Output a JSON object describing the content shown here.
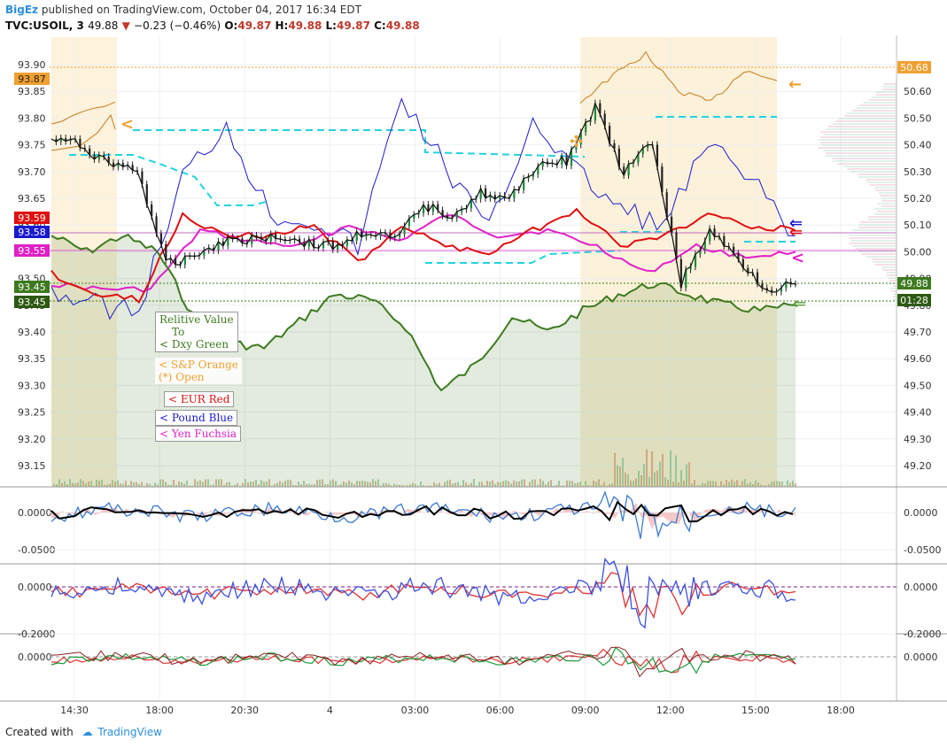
{
  "header": {
    "user": "BigEz",
    "published": "published on TradingView.com, October 04, 2017 16:34 EDT",
    "symbol": "TVC:USOIL, 3",
    "last": "49.88",
    "change": "−0.23 (−0.46%)",
    "o_label": "O:",
    "o": "49.87",
    "h_label": "H:",
    "h": "49.88",
    "l_label": "L:",
    "l": "49.87",
    "c_label": "C:",
    "c": "49.88"
  },
  "footer": {
    "created_with": "Created with",
    "brand": "TradingView"
  },
  "legend": {
    "title_1": "Relitive Value",
    "title_2": "To",
    "title_3": "< Dxy Green",
    "sp_1": "< S&P Orange",
    "sp_2": "(*) Open",
    "eur": "< EUR Red",
    "pound": "< Pound Blue",
    "yen": "< Yen Fuchsia"
  },
  "colors": {
    "oil": "#111111",
    "dxy": "#3d7a1f",
    "sp": "#c87a1a",
    "eur": "#e01010",
    "pound": "#1a1ad0",
    "yen": "#e020c8",
    "cyan": "#22d3e0",
    "grid": "#eef0f4"
  },
  "chart_data": [
    {
      "type": "line",
      "title": "",
      "x_ticks": [
        "14:30",
        "18:00",
        "20:30",
        "4",
        "03:00",
        "06:00",
        "09:00",
        "12:00",
        "15:00",
        "18:00"
      ],
      "left_axis": {
        "ticks": [
          "93.90",
          "93.85",
          "93.80",
          "93.75",
          "93.70",
          "93.65",
          "93.60",
          "93.55",
          "93.50",
          "93.45",
          "93.40",
          "93.35",
          "93.30",
          "93.25",
          "93.20",
          "93.15"
        ],
        "ylim": [
          93.11,
          93.93
        ]
      },
      "right_axis": {
        "ticks": [
          "50.70",
          "50.60",
          "50.50",
          "50.40",
          "50.30",
          "50.20",
          "50.10",
          "50.00",
          "49.90",
          "49.80",
          "49.70",
          "49.60",
          "49.50",
          "49.40",
          "49.30",
          "49.20"
        ],
        "ylim": [
          49.08,
          50.73
        ]
      },
      "left_markers": [
        {
          "label": "93.87",
          "color": "#f0a030"
        },
        {
          "label": "93.59",
          "color": "#e01010"
        },
        {
          "label": "93.58",
          "color": "#1a1ad0"
        },
        {
          "label": "93.55",
          "color": "#e020c8"
        },
        {
          "label": "93.45",
          "color": "#3d7a1f"
        },
        {
          "label": "93.45",
          "color": "#2d5a12"
        }
      ],
      "right_markers": [
        {
          "label": "50.68",
          "color": "#f0a030"
        },
        {
          "label": "49.88",
          "color": "#3d7a1f"
        },
        {
          "label": "01:28",
          "color": "#2d5a12"
        }
      ],
      "series": [
        {
          "name": "USOIL",
          "values": [
            50.42,
            50.4,
            50.33,
            50.31,
            49.95,
            49.99,
            50.04,
            50.05,
            50.06,
            50.03,
            50.02,
            50.08,
            50.04,
            50.17,
            50.14,
            50.22,
            50.19,
            50.33,
            50.34,
            50.54,
            50.29,
            50.41,
            49.88,
            50.08,
            49.97,
            49.86,
            49.88
          ]
        },
        {
          "name": "Dxy Green",
          "values": [
            93.58,
            93.55,
            93.58,
            93.55,
            93.43,
            93.38,
            93.37,
            93.42,
            93.47,
            93.46,
            93.41,
            93.29,
            93.34,
            93.43,
            93.4,
            93.44,
            93.47,
            93.49,
            93.47,
            93.45,
            93.44,
            93.45
          ]
        },
        {
          "name": "S&P Orange",
          "values": [
            93.79,
            93.83,
            93.88,
            93.92,
            93.85,
            93.83,
            93.89,
            93.87
          ]
        },
        {
          "name": "EUR Red",
          "values": [
            93.51,
            93.47,
            93.46,
            93.62,
            93.58,
            93.58,
            93.6,
            93.53,
            93.6,
            93.56,
            93.55,
            93.59,
            93.63,
            93.56,
            93.58,
            93.62,
            93.6,
            93.59
          ]
        },
        {
          "name": "Pound Blue",
          "values": [
            93.48,
            93.45,
            93.44,
            93.69,
            93.79,
            93.62,
            93.61,
            93.56,
            93.84,
            93.71,
            93.59,
            93.8,
            93.7,
            93.63,
            93.6,
            93.75,
            93.68,
            93.58
          ]
        },
        {
          "name": "Yen Fuchsia",
          "values": [
            93.49,
            93.48,
            93.48,
            93.59,
            93.57,
            93.56,
            93.6,
            93.57,
            93.62,
            93.58,
            93.59,
            93.56,
            93.51,
            93.56,
            93.54,
            93.55
          ]
        }
      ]
    },
    {
      "type": "line",
      "title": "",
      "yticks": [
        "0.0000",
        "-0.0500"
      ]
    },
    {
      "type": "line",
      "title": "",
      "yticks": [
        "0.0000",
        "-0.2000"
      ]
    },
    {
      "type": "line",
      "title": "",
      "yticks": [
        "0.0000"
      ]
    }
  ]
}
